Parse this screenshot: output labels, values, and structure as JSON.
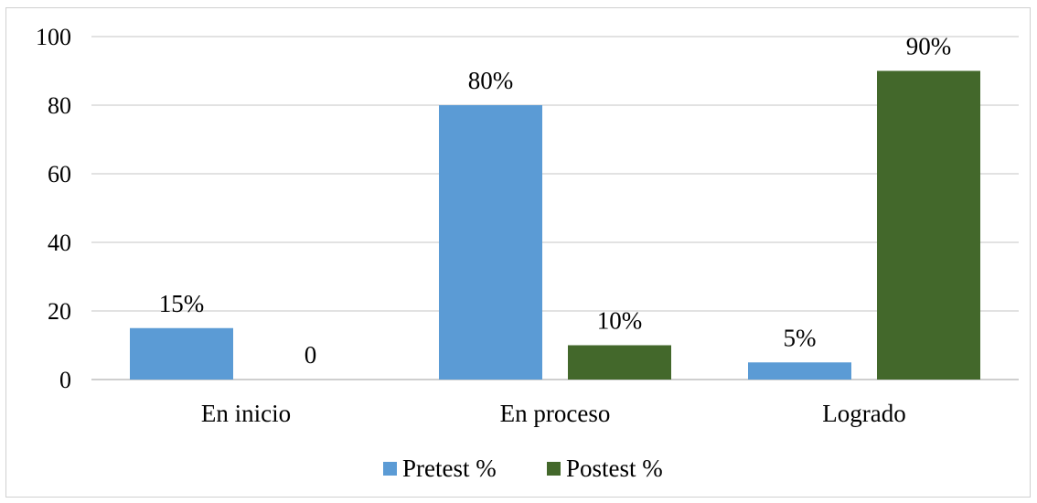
{
  "chart_data": {
    "type": "bar",
    "categories": [
      "En inicio",
      "En proceso",
      "Logrado"
    ],
    "series": [
      {
        "name": "Pretest %",
        "values": [
          15,
          80,
          5
        ],
        "labels": [
          "15%",
          "80%",
          "5%"
        ],
        "color": "#5b9bd5"
      },
      {
        "name": "Postest %",
        "values": [
          0,
          10,
          90
        ],
        "labels": [
          "0",
          "10%",
          "90%"
        ],
        "color": "#43682b"
      }
    ],
    "ylim": [
      0,
      100
    ],
    "yticks": [
      0,
      20,
      40,
      60,
      80,
      100
    ],
    "grid": true,
    "legend": "bottom"
  }
}
